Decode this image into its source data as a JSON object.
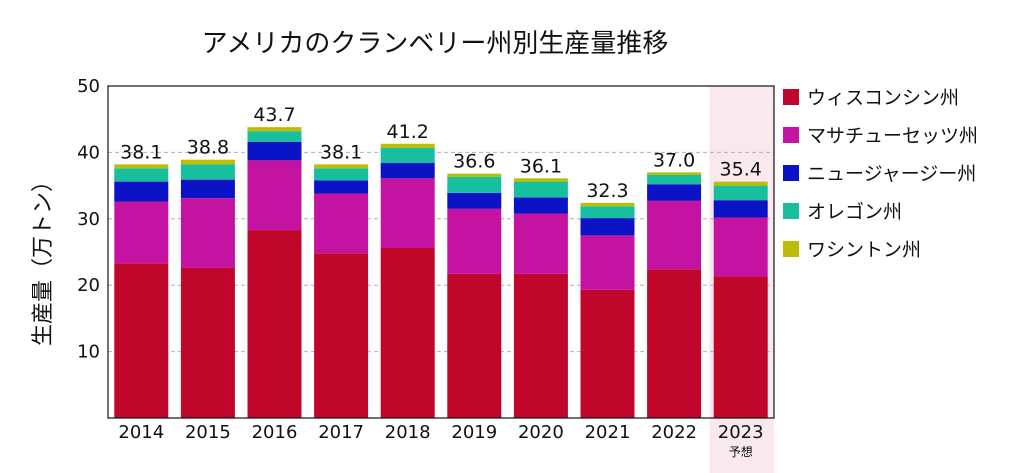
{
  "chart_data": {
    "type": "bar",
    "stacked": true,
    "title": "アメリカのクランベリー州別生産量推移",
    "ylabel": "生産量（万トン）",
    "xlabel": "",
    "ylim": [
      0,
      50
    ],
    "yticks": [
      10,
      20,
      30,
      40,
      50
    ],
    "grid": "horizontal dashed",
    "legend_position": "right",
    "categories": [
      "2014",
      "2015",
      "2016",
      "2017",
      "2018",
      "2019",
      "2020",
      "2021",
      "2022",
      "2023"
    ],
    "category_sublabels": [
      "",
      "",
      "",
      "",
      "",
      "",
      "",
      "",
      "",
      "予想"
    ],
    "highlight_category": "2023",
    "totals": [
      "38.1",
      "38.8",
      "43.7",
      "38.1",
      "41.2",
      "36.6",
      "36.1",
      "32.3",
      "37.0",
      "35.4"
    ],
    "series": [
      {
        "name": "ウィスコンシン州",
        "color": "#c0062a",
        "values": [
          23.3,
          22.6,
          28.3,
          24.8,
          25.6,
          21.7,
          21.7,
          19.3,
          22.4,
          21.3
        ]
      },
      {
        "name": "マサチューセッツ州",
        "color": "#c413a1",
        "values": [
          9.3,
          10.5,
          10.5,
          9.0,
          10.5,
          9.8,
          9.1,
          8.2,
          10.3,
          8.9
        ]
      },
      {
        "name": "ニュージャージー州",
        "color": "#0a13c6",
        "values": [
          3.0,
          2.8,
          2.8,
          2.0,
          2.3,
          2.4,
          2.4,
          2.6,
          2.5,
          2.6
        ]
      },
      {
        "name": "オレゴン州",
        "color": "#18bf9e",
        "values": [
          2.0,
          2.3,
          1.6,
          1.8,
          2.3,
          2.4,
          2.4,
          1.8,
          1.4,
          2.2
        ]
      },
      {
        "name": "ワシントン州",
        "color": "#bdbd05",
        "values": [
          0.6,
          0.7,
          0.6,
          0.6,
          0.6,
          0.5,
          0.5,
          0.5,
          0.4,
          0.6
        ]
      }
    ]
  }
}
